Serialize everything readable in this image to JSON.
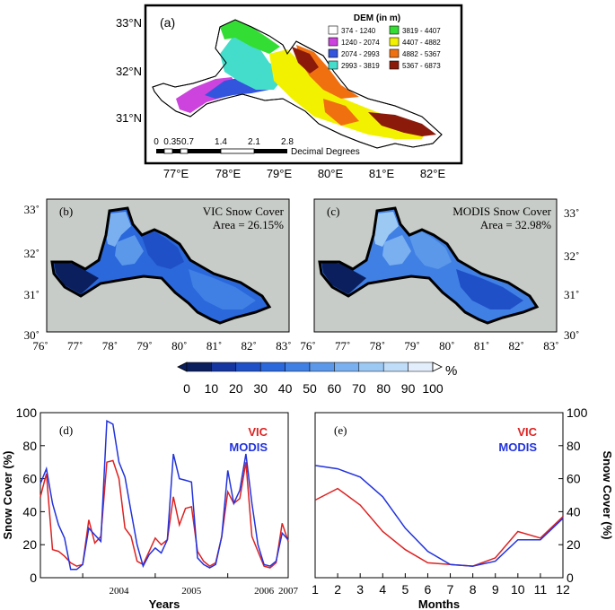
{
  "panel_a": {
    "label": "(a)",
    "legend_title": "DEM (in m)",
    "legend": [
      {
        "label": "374 - 1240",
        "color": "#ffffff"
      },
      {
        "label": "1240 - 2074",
        "color": "#cc44dd"
      },
      {
        "label": "2074 - 2993",
        "color": "#3355dd"
      },
      {
        "label": "2993 - 3819",
        "color": "#44ddcc"
      },
      {
        "label": "3819 - 4407",
        "color": "#33dd33"
      },
      {
        "label": "4407 - 4882",
        "color": "#f2f200"
      },
      {
        "label": "4882 - 5367",
        "color": "#f07010"
      },
      {
        "label": "5367 - 6873",
        "color": "#8b1a0a"
      }
    ],
    "lat_ticks": [
      "33°N",
      "32°N",
      "31°N"
    ],
    "lon_ticks": [
      "77°E",
      "78°E",
      "79°E",
      "80°E",
      "81°E",
      "82°E"
    ],
    "scale_labels": [
      "0",
      "0.35",
      "0.7",
      "1.4",
      "2.1",
      "2.8"
    ],
    "scale_unit": "Decimal Degrees"
  },
  "panel_b": {
    "label": "(b)",
    "title": "VIC Snow Cover",
    "area": "Area = 26.15%"
  },
  "panel_c": {
    "label": "(c)",
    "title": "MODIS Snow Cover",
    "area": "Area = 32.98%"
  },
  "map_axes": {
    "lat_ticks": [
      "33˚",
      "32˚",
      "31˚",
      "30˚"
    ],
    "lon_ticks": [
      "76˚",
      "77˚",
      "78˚",
      "79˚",
      "80˚",
      "81˚",
      "82˚",
      "83˚"
    ]
  },
  "colorbar": {
    "ticks": [
      "0",
      "10",
      "20",
      "30",
      "40",
      "50",
      "60",
      "70",
      "80",
      "90",
      "100"
    ],
    "unit": "%",
    "colors": [
      "#0b1f5e",
      "#1535a0",
      "#1f50c8",
      "#2a68dc",
      "#4080e4",
      "#5b98ea",
      "#7ab0f0",
      "#9cc8f4",
      "#bfdcf8",
      "#e3eefc"
    ],
    "colors_note": ""
  },
  "chart_data": [
    {
      "type": "line",
      "panel_label": "(d)",
      "title": "",
      "xlabel": "Years",
      "ylabel": "Snow Cover (%)",
      "ylim": [
        0,
        100
      ],
      "yticks": [
        0,
        20,
        40,
        60,
        80,
        100
      ],
      "xtick_labels": [
        "2004",
        "2005",
        "2006",
        "2007"
      ],
      "x_start": "2003-06",
      "x_end": "2007-05",
      "grid": false,
      "legend_position": "top-right",
      "series": [
        {
          "name": "VIC",
          "color": "#dd2222",
          "values": [
            49,
            63,
            17,
            16,
            13,
            9,
            7,
            8,
            35,
            21,
            25,
            70,
            71,
            60,
            30,
            25,
            10,
            8,
            16,
            24,
            20,
            23,
            49,
            32,
            42,
            43,
            16,
            10,
            7,
            9,
            25,
            52,
            45,
            48,
            70,
            25,
            16,
            7,
            6,
            9,
            33,
            22
          ]
        },
        {
          "name": "MODIS",
          "color": "#2233dd",
          "values": [
            57,
            66,
            45,
            32,
            24,
            5,
            5,
            8,
            30,
            26,
            22,
            95,
            93,
            70,
            61,
            40,
            20,
            7,
            14,
            18,
            15,
            23,
            75,
            60,
            59,
            58,
            12,
            8,
            6,
            8,
            25,
            65,
            45,
            53,
            75,
            45,
            20,
            8,
            7,
            10,
            27,
            23
          ]
        }
      ]
    },
    {
      "type": "line",
      "panel_label": "(e)",
      "title": "",
      "xlabel": "Months",
      "ylabel": "Snow Cover (%)",
      "ylim": [
        0,
        100
      ],
      "yticks": [
        0,
        20,
        40,
        60,
        80,
        100
      ],
      "x": [
        1,
        2,
        3,
        4,
        5,
        6,
        7,
        8,
        9,
        10,
        11,
        12
      ],
      "grid": false,
      "legend_position": "top-right",
      "series": [
        {
          "name": "VIC",
          "color": "#dd2222",
          "values": [
            47,
            54,
            44,
            28,
            17,
            9,
            8,
            7,
            12,
            28,
            24,
            37
          ]
        },
        {
          "name": "MODIS",
          "color": "#2233dd",
          "values": [
            68,
            66,
            61,
            49,
            30,
            16,
            8,
            7,
            10,
            23,
            23,
            36
          ]
        }
      ]
    }
  ]
}
